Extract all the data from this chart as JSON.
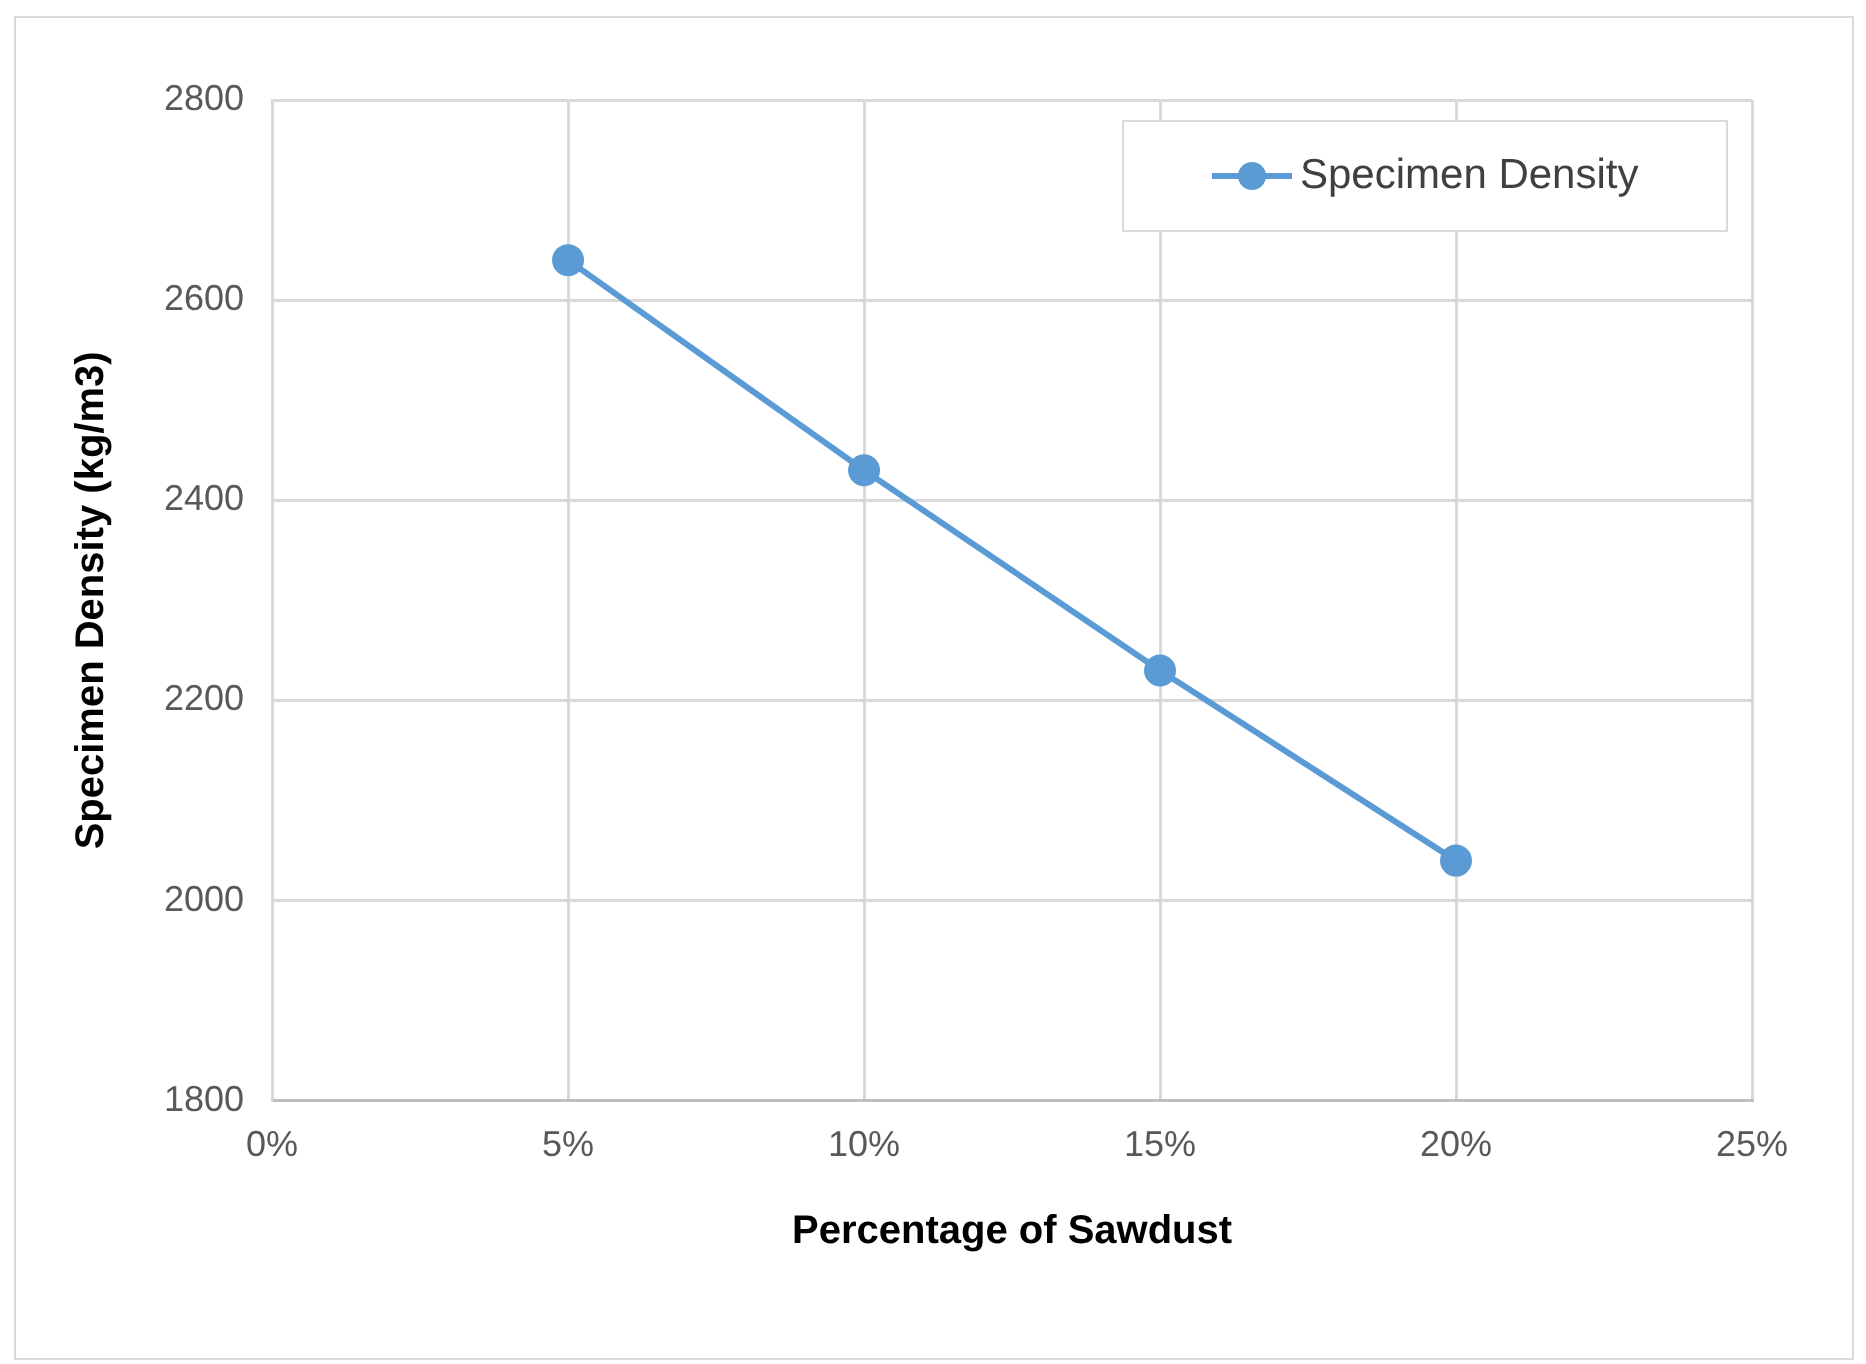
{
  "chart_data": {
    "type": "line",
    "xlabel": "Percentage of Sawdust",
    "ylabel": "Specimen Density (kg/m3)",
    "x": [
      5,
      10,
      15,
      20
    ],
    "series": [
      {
        "name": "Specimen Density",
        "color": "#5b9bd5",
        "values": [
          2640,
          2430,
          2230,
          2040
        ]
      }
    ],
    "xlim": [
      0,
      25
    ],
    "xticks": [
      {
        "value": 0,
        "label": "0%"
      },
      {
        "value": 5,
        "label": "5%"
      },
      {
        "value": 10,
        "label": "10%"
      },
      {
        "value": 15,
        "label": "15%"
      },
      {
        "value": 20,
        "label": "20%"
      },
      {
        "value": 25,
        "label": "25%"
      }
    ],
    "ylim": [
      1800,
      2800
    ],
    "yticks": [
      1800,
      2000,
      2200,
      2400,
      2600,
      2800
    ],
    "grid": true,
    "legend": "top right",
    "marker": "circle",
    "line_style": "solid"
  }
}
